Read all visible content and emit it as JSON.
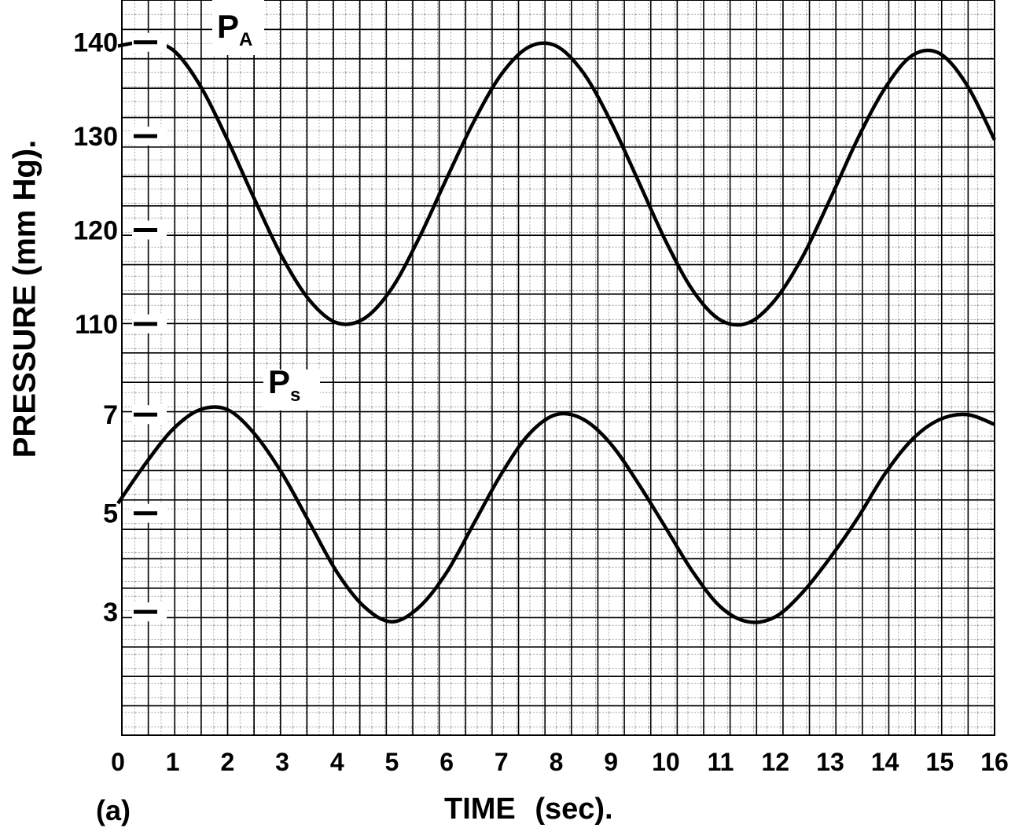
{
  "chart_data": {
    "type": "line",
    "title": "",
    "panel_label": "(a)",
    "xlabel": "TIME  (sec).",
    "ylabel": "PRESSURE  (mm Hg).",
    "xlim": [
      0,
      16
    ],
    "x_ticks": [
      "0",
      "1",
      "2",
      "3",
      "4",
      "5",
      "6",
      "7",
      "8",
      "9",
      "10",
      "11",
      "12",
      "13",
      "14",
      "15",
      "16"
    ],
    "grid": true,
    "upper_axis": {
      "ylim": [
        97.6,
        144.5
      ],
      "y_ticks": [
        "110",
        "120",
        "130",
        "140"
      ]
    },
    "lower_axis": {
      "ylim": [
        0.5,
        8.55
      ],
      "y_ticks": [
        "3",
        "5",
        "7"
      ]
    },
    "series": [
      {
        "name": "P",
        "subscript": "A",
        "axis": "upper",
        "x": [
          0,
          0.5,
          1.0,
          1.5,
          2.0,
          2.5,
          3.0,
          3.5,
          4.0,
          4.5,
          5.0,
          5.5,
          6.0,
          6.5,
          7.0,
          7.5,
          8.0,
          8.5,
          9.0,
          9.5,
          10.0,
          10.5,
          11.0,
          11.5,
          12.0,
          12.5,
          13.0,
          13.5,
          14.0,
          14.5,
          15.0,
          15.5,
          16.0
        ],
        "y": [
          139.6,
          140.0,
          139.2,
          135.4,
          129.6,
          123.2,
          117.1,
          112.5,
          110.1,
          110.6,
          113.8,
          119.2,
          125.5,
          131.6,
          136.6,
          139.5,
          139.6,
          136.7,
          131.5,
          125.2,
          118.8,
          113.5,
          110.4,
          110.1,
          112.6,
          117.2,
          123.3,
          129.7,
          135.1,
          138.6,
          138.8,
          135.4,
          129.6
        ]
      },
      {
        "name": "P",
        "subscript": "s",
        "axis": "lower",
        "x": [
          0,
          0.5,
          1.0,
          1.5,
          2.0,
          2.5,
          3.0,
          3.5,
          4.0,
          4.5,
          5.0,
          5.5,
          6.0,
          6.5,
          7.0,
          7.5,
          8.0,
          8.5,
          9.0,
          9.5,
          10.0,
          10.5,
          11.0,
          11.5,
          12.0,
          12.5,
          13.0,
          13.5,
          14.0,
          14.5,
          15.0,
          15.5,
          16.0
        ],
        "y": [
          5.2,
          6.0,
          6.7,
          7.1,
          7.1,
          6.6,
          5.8,
          4.8,
          3.8,
          3.1,
          2.8,
          3.1,
          3.8,
          4.8,
          5.8,
          6.6,
          7.0,
          6.9,
          6.4,
          5.6,
          4.7,
          3.8,
          3.1,
          2.8,
          2.9,
          3.4,
          4.1,
          4.9,
          5.8,
          6.5,
          6.9,
          7.0,
          6.8
        ]
      }
    ]
  }
}
